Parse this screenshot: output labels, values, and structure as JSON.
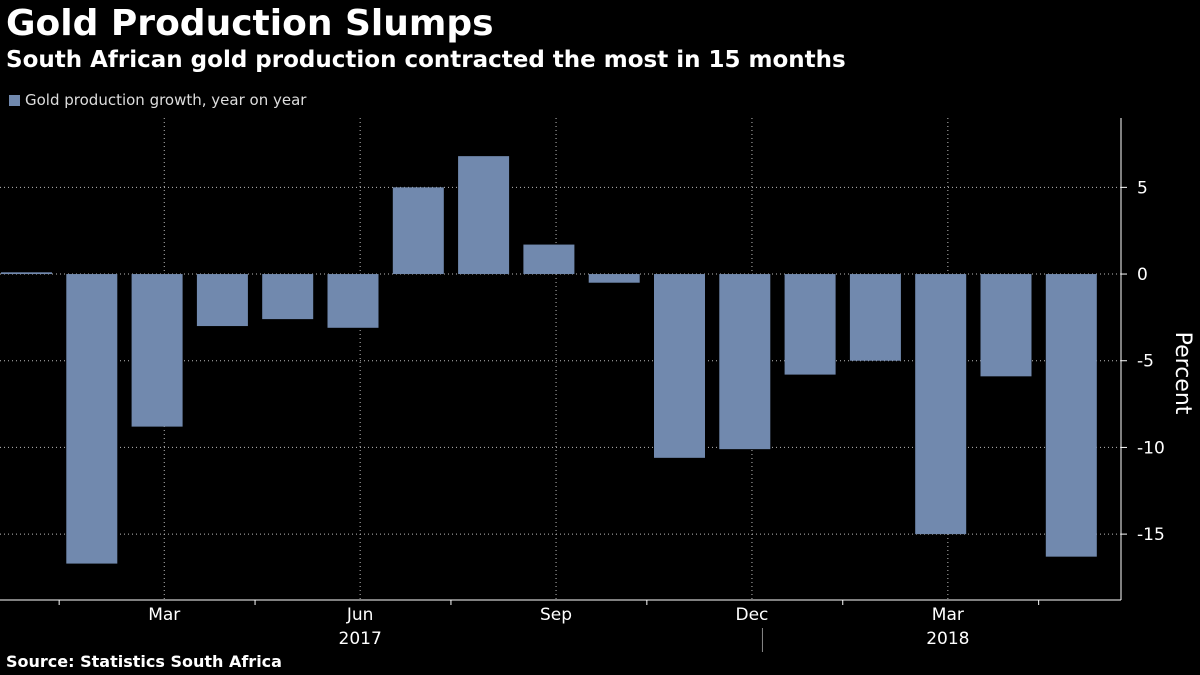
{
  "header": {
    "title": "Gold Production Slumps",
    "subtitle": "South African gold production contracted the most in 15 months"
  },
  "legend": {
    "label": "Gold production growth, year on year",
    "color": "#7189ae"
  },
  "source": "Source: Statistics South Africa",
  "chart_data": {
    "type": "bar",
    "title": "Gold Production Slumps",
    "subtitle": "South African gold production contracted the most in 15 months",
    "series_name": "Gold production growth, year on year",
    "ylabel": "Percent",
    "ylim": [
      -18.8,
      9
    ],
    "yticks": [
      5,
      0,
      -5,
      -10,
      -15
    ],
    "grid": true,
    "legend_position": "top-left",
    "categories": [
      "Jan 2017",
      "Feb 2017",
      "Mar 2017",
      "Apr 2017",
      "May 2017",
      "Jun 2017",
      "Jul 2017",
      "Aug 2017",
      "Sep 2017",
      "Oct 2017",
      "Nov 2017",
      "Dec 2017",
      "Jan 2018",
      "Feb 2018",
      "Mar 2018",
      "Apr 2018",
      "May 2018"
    ],
    "values": [
      0.1,
      -16.7,
      -8.8,
      -3.0,
      -2.6,
      -3.1,
      5.0,
      6.8,
      1.7,
      -0.5,
      -10.6,
      -10.1,
      -5.8,
      -5.0,
      -15.0,
      -5.9,
      -16.3
    ],
    "xticks": [
      {
        "index": 2,
        "label": "Mar"
      },
      {
        "index": 5,
        "label": "Jun"
      },
      {
        "index": 8,
        "label": "Sep"
      },
      {
        "index": 11,
        "label": "Dec"
      },
      {
        "index": 14,
        "label": "Mar"
      }
    ],
    "year_labels": [
      {
        "index": 5,
        "label": "2017"
      },
      {
        "index": 14,
        "label": "2018"
      }
    ]
  }
}
